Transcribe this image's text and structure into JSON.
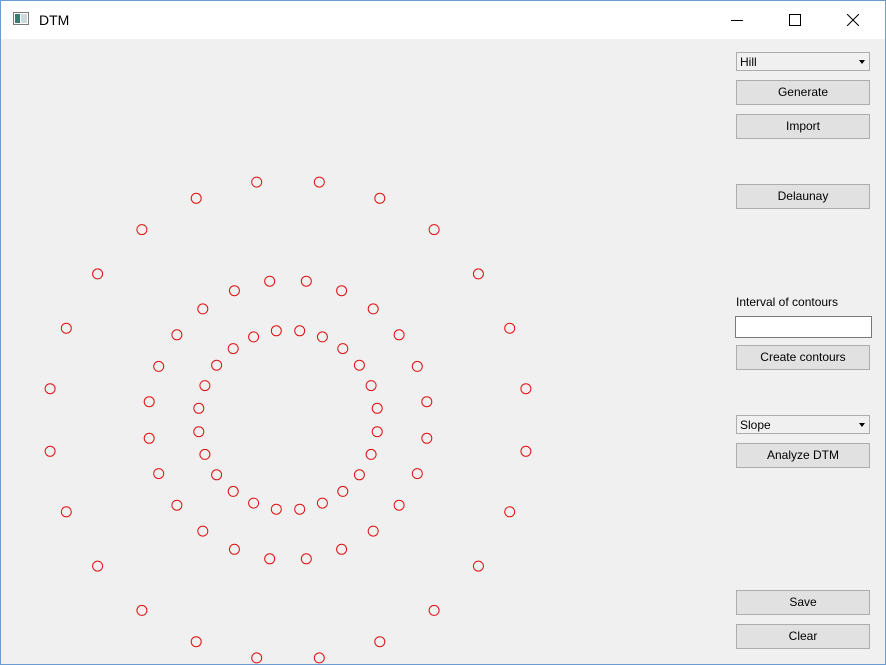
{
  "window": {
    "title": "DTM"
  },
  "controls": {
    "terrain_select": "Hill",
    "generate_label": "Generate",
    "import_label": "Import",
    "delaunay_label": "Delaunay",
    "contour_interval_label": "Interval of contours",
    "contour_interval_value": "",
    "create_contours_label": "Create contours",
    "analysis_select": "Slope",
    "analyze_label": "Analyze DTM",
    "save_label": "Save",
    "clear_label": "Clear"
  },
  "colors": {
    "point_stroke": "#e01010",
    "background": "#f0f0f0"
  },
  "point_rings": [
    {
      "count": 24,
      "radius": 240
    },
    {
      "count": 24,
      "radius": 140
    },
    {
      "count": 24,
      "radius": 90
    }
  ]
}
